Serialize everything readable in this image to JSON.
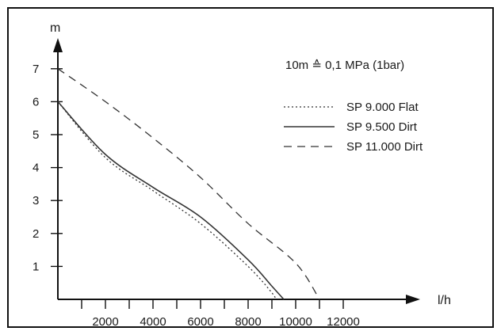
{
  "chart_data": {
    "type": "line",
    "title": "",
    "xlabel": "l/h",
    "ylabel": "m",
    "xlim": [
      0,
      13000
    ],
    "ylim": [
      0,
      8
    ],
    "x_ticks": [
      2000,
      4000,
      6000,
      8000,
      10000,
      12000
    ],
    "x_minor_ticks": [
      1000,
      3000,
      5000,
      7000,
      9000,
      11000
    ],
    "y_ticks": [
      1,
      2,
      3,
      4,
      5,
      6,
      7
    ],
    "grid": false,
    "legend_position": "top-right",
    "annotation": "10m ≙ 0,1 MPa (1bar)",
    "series": [
      {
        "name": "SP 9.000 Flat",
        "style": "dotted",
        "x": [
          0,
          2000,
          4000,
          6000,
          8000,
          9000,
          9150
        ],
        "y": [
          6,
          4.3,
          3.3,
          2.3,
          1.0,
          0.2,
          0
        ]
      },
      {
        "name": "SP 9.500 Dirt",
        "style": "solid",
        "x": [
          0,
          2000,
          4000,
          6000,
          8000,
          9000,
          9500
        ],
        "y": [
          6,
          4.4,
          3.4,
          2.5,
          1.2,
          0.4,
          0
        ]
      },
      {
        "name": "SP 11.000 Dirt",
        "style": "dashed",
        "x": [
          0,
          2000,
          4000,
          6000,
          8000,
          10000,
          11000
        ],
        "y": [
          7,
          6.0,
          4.9,
          3.7,
          2.3,
          1.1,
          0
        ]
      }
    ],
    "colors": {
      "line": "#333333",
      "frame": "#111111"
    }
  }
}
